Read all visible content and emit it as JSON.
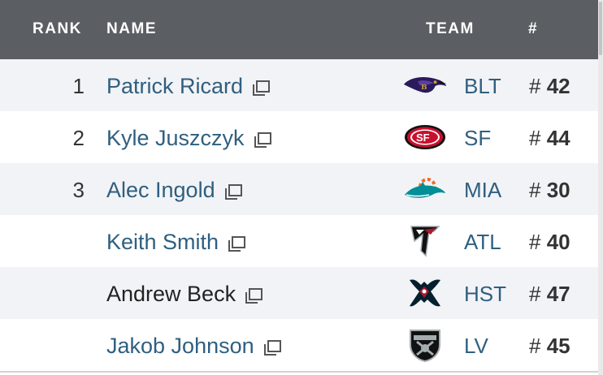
{
  "header": {
    "rank": "RANK",
    "name": "NAME",
    "team": "TEAM",
    "num": "#"
  },
  "rows": [
    {
      "rank": "1",
      "name": "Patrick Ricard",
      "team": "BLT",
      "num_prefix": "# ",
      "num": "42",
      "logo": "ravens-logo-icon"
    },
    {
      "rank": "2",
      "name": "Kyle Juszczyk",
      "team": "SF",
      "num_prefix": "# ",
      "num": "44",
      "logo": "49ers-logo-icon"
    },
    {
      "rank": "3",
      "name": "Alec Ingold",
      "team": "MIA",
      "num_prefix": "# ",
      "num": "30",
      "logo": "dolphins-logo-icon"
    },
    {
      "rank": "",
      "name": "Keith Smith",
      "team": "ATL",
      "num_prefix": "# ",
      "num": "40",
      "logo": "falcons-logo-icon"
    },
    {
      "rank": "",
      "name": "Andrew Beck",
      "team": "HST",
      "num_prefix": "# ",
      "num": "47",
      "logo": "texans-logo-icon"
    },
    {
      "rank": "",
      "name": "Jakob Johnson",
      "team": "LV",
      "num_prefix": "# ",
      "num": "45",
      "logo": "raiders-logo-icon"
    }
  ],
  "colors": {
    "header_bg": "#5b5f63",
    "row_alt_bg": "#f2f3f6",
    "link": "#2f5f80"
  }
}
